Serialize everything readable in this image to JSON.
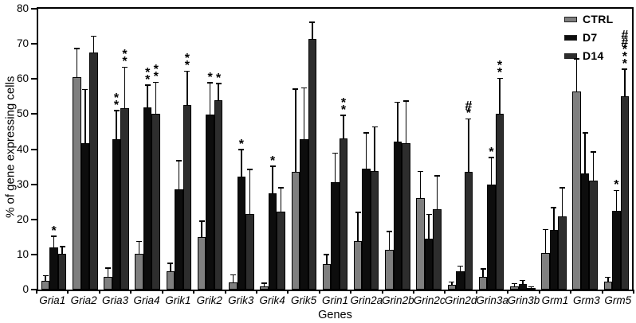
{
  "chart_data": {
    "type": "bar",
    "title": "",
    "xlabel": "Genes",
    "ylabel": "% of gene expressing cells",
    "ylim": [
      0,
      80
    ],
    "yticks": [
      0,
      10,
      20,
      30,
      40,
      50,
      60,
      70,
      80
    ],
    "grid": false,
    "legend_position": "top-right-inside",
    "error_bars": "upper-only",
    "significance_note": "asterisk and hash marks are stacked vertically above error bars",
    "categories": [
      "Gria1",
      "Gria2",
      "Gria3",
      "Gria4",
      "Grik1",
      "Grik2",
      "Grik3",
      "Grik4",
      "Grik5",
      "Grin1",
      "Grin2a",
      "Grin2b",
      "Grin2c",
      "Grin2d",
      "Grin3a",
      "Grin3b",
      "Grm1",
      "Grm3",
      "Grm5"
    ],
    "series": [
      {
        "name": "CTRL",
        "color": "#7f7f7f",
        "values": [
          2.5,
          60.5,
          3.7,
          10.2,
          5.3,
          15,
          2,
          1,
          33.5,
          7.3,
          13.8,
          11.4,
          26,
          1.4,
          3.7,
          1,
          10.5,
          56.5,
          2.2
        ],
        "errors": [
          1.3,
          8,
          2.2,
          3.3,
          2,
          4.3,
          2,
          0.7,
          23.5,
          2.5,
          8,
          5,
          7.5,
          0.6,
          2,
          0.5,
          6.5,
          9,
          1.1
        ],
        "sig": [
          "",
          "",
          "",
          "",
          "",
          "",
          "",
          "",
          "",
          "",
          "",
          "",
          "",
          "",
          "",
          "",
          "",
          "",
          ""
        ]
      },
      {
        "name": "D7",
        "color": "#0d0d0d",
        "values": [
          12,
          41.8,
          42.8,
          51.8,
          28.6,
          49.8,
          32.2,
          27.5,
          42.8,
          30.7,
          34.5,
          42.2,
          14.5,
          5.3,
          30,
          1.6,
          17,
          33,
          22.5
        ],
        "errors": [
          3,
          15,
          8,
          6.3,
          8,
          9,
          7.5,
          7.5,
          14.5,
          8,
          10,
          11,
          6.8,
          1.2,
          7.5,
          0.8,
          6.2,
          11.5,
          5.5
        ],
        "sig": [
          "*",
          "",
          "**",
          "**",
          "",
          "*",
          "*",
          "*",
          "",
          "",
          "",
          "",
          "",
          "",
          "*",
          "",
          "",
          "",
          "*"
        ]
      },
      {
        "name": "D14",
        "color": "#2d2d2d",
        "values": [
          10.3,
          67.5,
          51.7,
          50.2,
          52.5,
          54,
          21.5,
          22.3,
          71.5,
          43,
          33.8,
          41.6,
          23,
          33.5,
          50,
          0.3,
          20.8,
          31,
          55
        ],
        "errors": [
          1.8,
          4.5,
          11.5,
          8.7,
          9.5,
          4.5,
          12.5,
          6.5,
          4.5,
          6.5,
          12.4,
          12,
          9.2,
          15,
          10,
          0.3,
          8,
          8,
          7.6
        ],
        "sig": [
          "",
          "",
          "**",
          "**",
          "**",
          "*",
          "",
          "",
          "",
          "**",
          "",
          "",
          "",
          "#*",
          "**",
          "",
          "",
          "",
          "##***"
        ]
      }
    ]
  }
}
